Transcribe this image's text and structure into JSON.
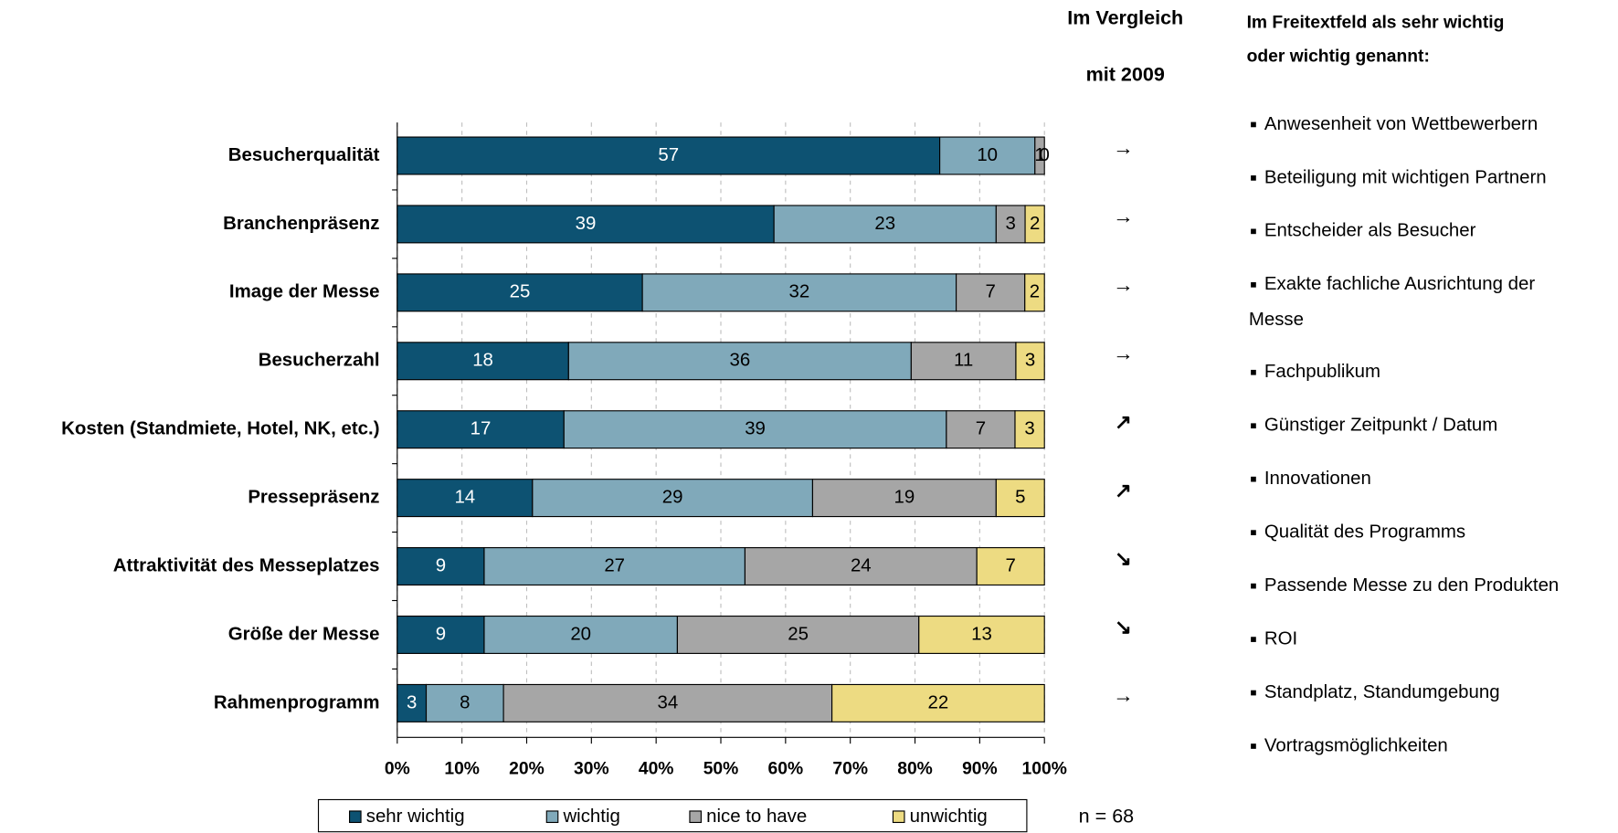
{
  "chart_data": {
    "type": "bar",
    "orientation": "horizontal",
    "stack": "percent",
    "categories": [
      "Besucherqualität",
      "Branchenpräsenz",
      "Image der Messe",
      "Besucherzahl",
      "Kosten (Standmiete, Hotel, NK, etc.)",
      "Pressepräsenz",
      "Attraktivität des Messeplatzes",
      "Größe der Messe",
      "Rahmenprogramm"
    ],
    "series": [
      {
        "name": "sehr wichtig",
        "color": "#0d5272",
        "values": [
          57,
          39,
          25,
          18,
          17,
          14,
          9,
          9,
          3
        ]
      },
      {
        "name": "wichtig",
        "color": "#80a9ba",
        "values": [
          10,
          23,
          32,
          36,
          39,
          29,
          27,
          20,
          8
        ]
      },
      {
        "name": "nice to have",
        "color": "#a6a6a6",
        "values": [
          1,
          3,
          7,
          11,
          7,
          19,
          24,
          25,
          34
        ]
      },
      {
        "name": "unwichtig",
        "color": "#eddb82",
        "values": [
          0,
          2,
          2,
          3,
          3,
          5,
          7,
          13,
          22
        ]
      }
    ],
    "xlim": [
      0,
      100
    ],
    "xticks": [
      {
        "value": 0,
        "label": "0%"
      },
      {
        "value": 10,
        "label": "10%"
      },
      {
        "value": 20,
        "label": "20%"
      },
      {
        "value": 30,
        "label": "30%"
      },
      {
        "value": 40,
        "label": "40%"
      },
      {
        "value": 50,
        "label": "50%"
      },
      {
        "value": 60,
        "label": "60%"
      },
      {
        "value": 70,
        "label": "70%"
      },
      {
        "value": 80,
        "label": "80%"
      },
      {
        "value": 90,
        "label": "90%"
      },
      {
        "value": 100,
        "label": "100%"
      }
    ],
    "grid": true,
    "legend": "bottom",
    "comparison_header": [
      "Im Vergleich",
      "mit 2009"
    ],
    "trend": [
      "→",
      "→",
      "→",
      "→",
      "↗",
      "↗",
      "↘",
      "↘",
      "→"
    ],
    "sample_size": "n = 68"
  },
  "side_panel": {
    "title": [
      "Im Freitextfeld als sehr wichtig",
      "oder wichtig genannt:"
    ],
    "items": [
      [
        "Anwesenheit von Wettbewerbern"
      ],
      [
        "Beteiligung mit wichtigen Partnern"
      ],
      [
        "Entscheider als Besucher"
      ],
      [
        "Exakte fachliche Ausrichtung der",
        "Messe"
      ],
      [
        "Fachpublikum"
      ],
      [
        "Günstiger Zeitpunkt / Datum"
      ],
      [
        "Innovationen"
      ],
      [
        "Qualität des Programms"
      ],
      [
        "Passende Messe zu den Produkten"
      ],
      [
        "ROI"
      ],
      [
        "Standplatz, Standumgebung"
      ],
      [
        "Vortragsmöglichkeiten"
      ]
    ]
  }
}
